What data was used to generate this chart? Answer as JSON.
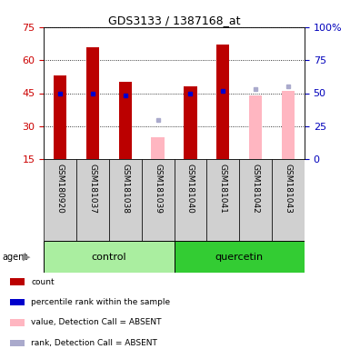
{
  "title": "GDS3133 / 1387168_at",
  "samples": [
    "GSM180920",
    "GSM181037",
    "GSM181038",
    "GSM181039",
    "GSM181040",
    "GSM181041",
    "GSM181042",
    "GSM181043"
  ],
  "count_values": [
    53,
    66,
    50,
    null,
    48,
    67,
    null,
    null
  ],
  "rank_values": [
    45,
    45,
    44,
    null,
    45,
    46,
    null,
    null
  ],
  "absent_value_values": [
    null,
    null,
    null,
    25,
    null,
    null,
    44,
    46
  ],
  "absent_rank_values": [
    null,
    null,
    null,
    33,
    null,
    null,
    47,
    48
  ],
  "count_color": "#BB0000",
  "rank_color": "#0000CC",
  "absent_value_color": "#FFB6C1",
  "absent_rank_color": "#AAAACC",
  "ylim_left": [
    15,
    75
  ],
  "ylim_right": [
    0,
    100
  ],
  "yticks_left": [
    15,
    30,
    45,
    60,
    75
  ],
  "yticks_right": [
    0,
    25,
    50,
    75,
    100
  ],
  "ylabel_left_color": "#CC0000",
  "ylabel_right_color": "#0000BB",
  "bar_bottom": 15,
  "bar_width": 0.4,
  "group_colors": [
    "#AAEEA0",
    "#33CC33"
  ],
  "legend_items": [
    {
      "label": "count",
      "color": "#BB0000"
    },
    {
      "label": "percentile rank within the sample",
      "color": "#0000CC"
    },
    {
      "label": "value, Detection Call = ABSENT",
      "color": "#FFB6C1"
    },
    {
      "label": "rank, Detection Call = ABSENT",
      "color": "#AAAACC"
    }
  ]
}
